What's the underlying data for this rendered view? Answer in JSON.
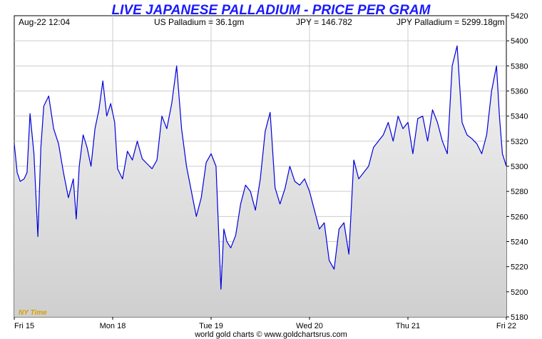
{
  "chart_data": {
    "type": "area",
    "title": "LIVE JAPANESE PALLADIUM - PRICE PER GRAM",
    "header": {
      "timestamp": "Aug-22  12:04",
      "us_palladium": "US Palladium = 36.1gm",
      "jpy_rate": "JPY = 146.782",
      "jpy_palladium": "JPY Palladium = 5299.18gm"
    },
    "timezone_label": "NY Time",
    "footer": "world gold charts © www.goldchartsrus.com",
    "x_tick_labels": [
      "Fri 15",
      "Mon 18",
      "Tue 19",
      "Wed 20",
      "Thu 21",
      "Fri 22"
    ],
    "y_tick_labels": [
      5180,
      5200,
      5220,
      5240,
      5260,
      5280,
      5300,
      5320,
      5340,
      5360,
      5380,
      5400,
      5420
    ],
    "ylim": [
      5180,
      5420
    ],
    "xlim": [
      0,
      5
    ],
    "grid": true,
    "colors": {
      "line": "#0000dd",
      "fill_top": "#f2f2f2",
      "fill_bottom": "#d0d0d0",
      "title": "#1a1aff",
      "grid": "#cccccc"
    },
    "series": [
      {
        "x": [
          0.0,
          0.03,
          0.06,
          0.1,
          0.13,
          0.16,
          0.2,
          0.24,
          0.27,
          0.3,
          0.35,
          0.4,
          0.45,
          0.5,
          0.55,
          0.6,
          0.63,
          0.66,
          0.7,
          0.74,
          0.78,
          0.82,
          0.86,
          0.9,
          0.94,
          0.98,
          1.02,
          1.05,
          1.1,
          1.15,
          1.2,
          1.25,
          1.3,
          1.35,
          1.4,
          1.45,
          1.5,
          1.55,
          1.6,
          1.65,
          1.7,
          1.75,
          1.8,
          1.85,
          1.9,
          1.95,
          2.0,
          2.05,
          2.1,
          2.13,
          2.16,
          2.2,
          2.25,
          2.3,
          2.35,
          2.4,
          2.45,
          2.5,
          2.55,
          2.6,
          2.65,
          2.7,
          2.75,
          2.8,
          2.85,
          2.9,
          2.95,
          3.0,
          3.05,
          3.1,
          3.15,
          3.2,
          3.25,
          3.3,
          3.35,
          3.4,
          3.45,
          3.5,
          3.55,
          3.6,
          3.65,
          3.7,
          3.75,
          3.8,
          3.85,
          3.9,
          3.95,
          4.0,
          4.05,
          4.1,
          4.15,
          4.2,
          4.25,
          4.3,
          4.35,
          4.4,
          4.45,
          4.5,
          4.55,
          4.6,
          4.65,
          4.7,
          4.75,
          4.8,
          4.85,
          4.9,
          4.93,
          4.96,
          5.0
        ],
        "y": [
          5318,
          5295,
          5288,
          5290,
          5295,
          5342,
          5310,
          5244,
          5315,
          5348,
          5356,
          5330,
          5318,
          5295,
          5275,
          5290,
          5258,
          5300,
          5325,
          5315,
          5300,
          5330,
          5345,
          5368,
          5340,
          5350,
          5335,
          5298,
          5290,
          5312,
          5305,
          5320,
          5306,
          5302,
          5298,
          5305,
          5340,
          5330,
          5350,
          5380,
          5330,
          5300,
          5280,
          5260,
          5275,
          5303,
          5310,
          5300,
          5202,
          5250,
          5240,
          5235,
          5245,
          5270,
          5285,
          5280,
          5265,
          5290,
          5328,
          5343,
          5283,
          5270,
          5282,
          5300,
          5288,
          5285,
          5290,
          5280,
          5265,
          5250,
          5255,
          5225,
          5218,
          5250,
          5255,
          5230,
          5305,
          5290,
          5295,
          5300,
          5315,
          5320,
          5325,
          5335,
          5320,
          5340,
          5330,
          5335,
          5310,
          5338,
          5340,
          5320,
          5345,
          5335,
          5320,
          5310,
          5380,
          5396,
          5335,
          5325,
          5322,
          5318,
          5310,
          5325,
          5360,
          5380,
          5340,
          5310,
          5300
        ]
      }
    ]
  }
}
